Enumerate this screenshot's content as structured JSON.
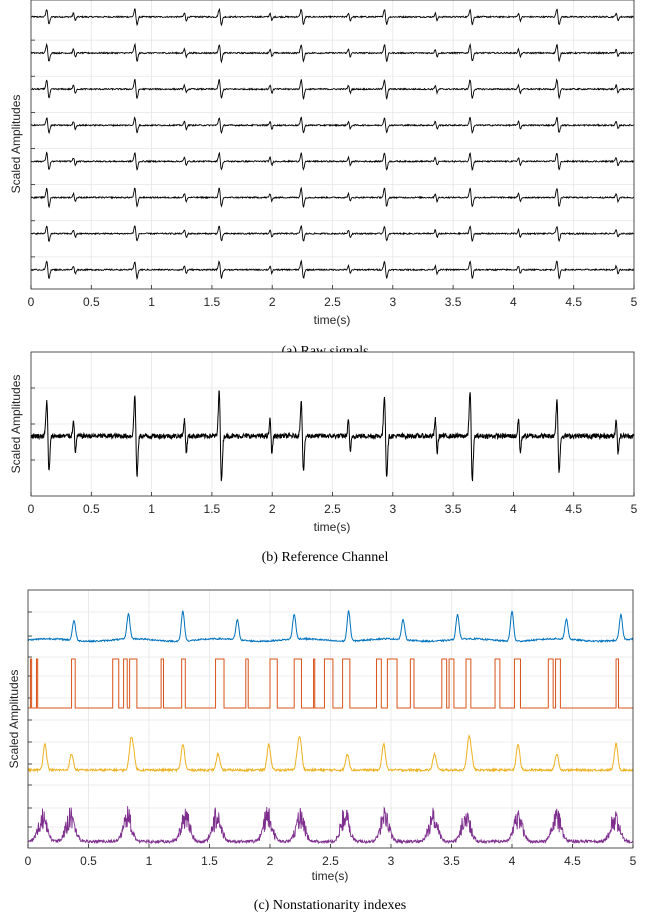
{
  "chart_data": [
    {
      "id": "a",
      "type": "line",
      "caption": "(a)  Raw signals",
      "xlabel": "time(s)",
      "ylabel": "Scaled Amplitudes",
      "xlim": [
        0,
        5
      ],
      "xticks": [
        0,
        0.5,
        1,
        1.5,
        2,
        2.5,
        3,
        3.5,
        4,
        4.5,
        5
      ],
      "xtick_labels": [
        "0",
        "0.5",
        "1",
        "1.5",
        "2",
        "2.5",
        "3",
        "3.5",
        "4",
        "4.5",
        "5"
      ],
      "grid": true,
      "color": "#000000",
      "series_count": 8,
      "major_spike_times": [
        0.14,
        0.87,
        1.57,
        2.25,
        2.94,
        3.65,
        4.37
      ],
      "minor_spike_times": [
        0.36,
        1.28,
        1.99,
        2.64,
        3.36,
        4.05,
        4.86
      ]
    },
    {
      "id": "b",
      "type": "line",
      "caption": "(b)  Reference Channel",
      "xlabel": "time(s)",
      "ylabel": "Scaled Amplitudes",
      "xlim": [
        0,
        5
      ],
      "xticks": [
        0,
        0.5,
        1,
        1.5,
        2,
        2.5,
        3,
        3.5,
        4,
        4.5,
        5
      ],
      "xtick_labels": [
        "0",
        "0.5",
        "1",
        "1.5",
        "2",
        "2.5",
        "3",
        "3.5",
        "4",
        "4.5",
        "5"
      ],
      "grid": true,
      "color": "#000000",
      "major_spike_times": [
        0.14,
        0.87,
        1.57,
        2.25,
        2.94,
        3.65,
        4.37
      ],
      "minor_spike_times": [
        0.36,
        1.28,
        1.99,
        2.64,
        3.36,
        4.05,
        4.86
      ]
    },
    {
      "id": "c",
      "type": "line",
      "caption": "(c)  Nonstationarity indexes",
      "xlabel": "time(s)",
      "ylabel": "Scaled Amplitudes",
      "xlim": [
        0,
        5
      ],
      "xticks": [
        0,
        0.5,
        1,
        1.5,
        2,
        2.5,
        3,
        3.5,
        4,
        4.5,
        5
      ],
      "xtick_labels": [
        "0",
        "0.5",
        "1",
        "1.5",
        "2",
        "2.5",
        "3",
        "3.5",
        "4",
        "4.5",
        "5"
      ],
      "grid": true,
      "series_colors": [
        "#0072BD",
        "#D95319",
        "#EDB120",
        "#7E2F8E"
      ],
      "peak_times": [
        0.38,
        0.83,
        1.28,
        1.73,
        2.2,
        2.65,
        3.1,
        3.55,
        4.0,
        4.45,
        4.9
      ]
    }
  ]
}
